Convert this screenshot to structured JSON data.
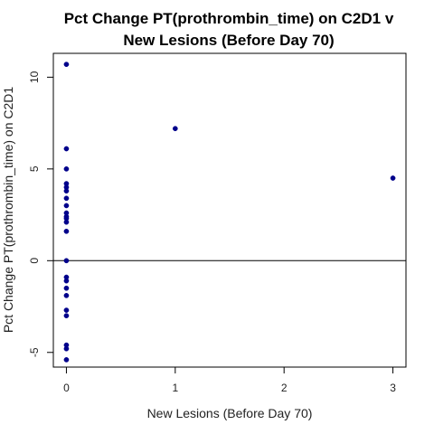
{
  "chart_data": {
    "type": "scatter",
    "title_lines": [
      "Pct Change PT(prothrombin_time) on C2D1 v",
      "New Lesions (Before Day 70)"
    ],
    "xlabel": "New Lesions (Before Day 70)",
    "ylabel": "Pct Change PT(prothrombin_time) on C2D1",
    "xlim": [
      -0.12,
      3.12
    ],
    "ylim": [
      -5.8,
      11.3
    ],
    "xticks": [
      0,
      1,
      2,
      3
    ],
    "yticks": [
      -5,
      0,
      5,
      10
    ],
    "reference_line_y": 0,
    "point_color": "#00008b",
    "points": [
      {
        "x": 0,
        "y": 10.7
      },
      {
        "x": 0,
        "y": 6.1
      },
      {
        "x": 0,
        "y": 5.0
      },
      {
        "x": 0,
        "y": 4.2
      },
      {
        "x": 0,
        "y": 4.0
      },
      {
        "x": 0,
        "y": 3.8
      },
      {
        "x": 0,
        "y": 3.4
      },
      {
        "x": 0,
        "y": 3.0
      },
      {
        "x": 0,
        "y": 2.6
      },
      {
        "x": 0,
        "y": 2.4
      },
      {
        "x": 0,
        "y": 2.3
      },
      {
        "x": 0,
        "y": 2.1
      },
      {
        "x": 0,
        "y": 1.6
      },
      {
        "x": 0,
        "y": 0.0
      },
      {
        "x": 0,
        "y": -0.9
      },
      {
        "x": 0,
        "y": -1.1
      },
      {
        "x": 0,
        "y": -1.5
      },
      {
        "x": 0,
        "y": -1.9
      },
      {
        "x": 0,
        "y": -2.7
      },
      {
        "x": 0,
        "y": -3.0
      },
      {
        "x": 0,
        "y": -4.6
      },
      {
        "x": 0,
        "y": -4.8
      },
      {
        "x": 0,
        "y": -5.4
      },
      {
        "x": 1,
        "y": 7.2
      },
      {
        "x": 3,
        "y": 4.5
      }
    ]
  }
}
